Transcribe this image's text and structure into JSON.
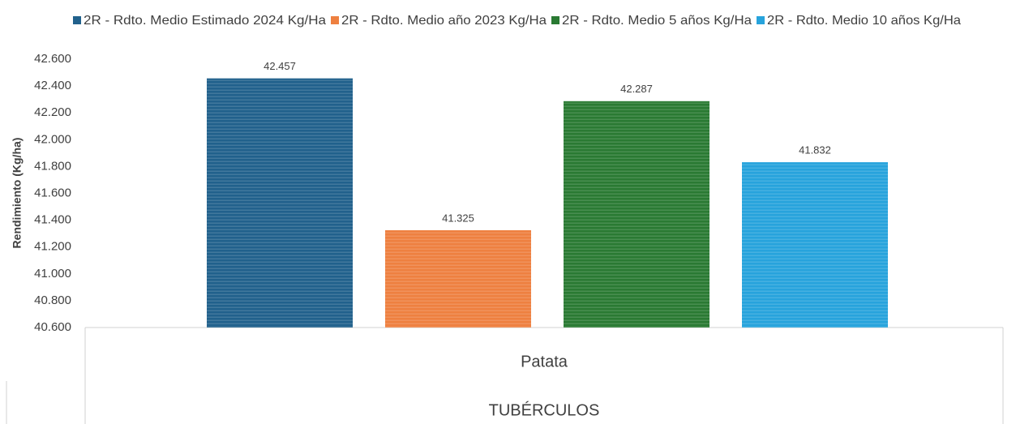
{
  "chart_data": {
    "type": "bar",
    "categories": [
      "Patata"
    ],
    "category_groups": [
      "TUBÉRCULOS"
    ],
    "y_label": "Rendimiento (Kg/ha)",
    "series": [
      {
        "name": "2R - Rdto. Medio Estimado 2024 Kg/Ha",
        "color": "#21618c",
        "values": [
          42457
        ],
        "value_labels": [
          "42.457"
        ]
      },
      {
        "name": "2R - Rdto. Medio año 2023 Kg/Ha",
        "color": "#ee8040",
        "values": [
          41325
        ],
        "value_labels": [
          "41.325"
        ]
      },
      {
        "name": "2R - Rdto. Medio 5 años Kg/Ha",
        "color": "#2a7a33",
        "values": [
          42287
        ],
        "value_labels": [
          "42.287"
        ]
      },
      {
        "name": "2R - Rdto. Medio 10 años Kg/Ha",
        "color": "#27a3dc",
        "values": [
          41832
        ],
        "value_labels": [
          "41.832"
        ]
      }
    ],
    "ylim": [
      40600,
      42600
    ],
    "yticks": [
      {
        "value": 40600,
        "label": "40.600"
      },
      {
        "value": 40800,
        "label": "40.800"
      },
      {
        "value": 41000,
        "label": "41.000"
      },
      {
        "value": 41200,
        "label": "41.200"
      },
      {
        "value": 41400,
        "label": "41.400"
      },
      {
        "value": 41600,
        "label": "41.600"
      },
      {
        "value": 41800,
        "label": "41.800"
      },
      {
        "value": 42000,
        "label": "42.000"
      },
      {
        "value": 42200,
        "label": "42.200"
      },
      {
        "value": 42400,
        "label": "42.400"
      },
      {
        "value": 42600,
        "label": "42.600"
      }
    ],
    "grid": false,
    "legend": "top"
  }
}
